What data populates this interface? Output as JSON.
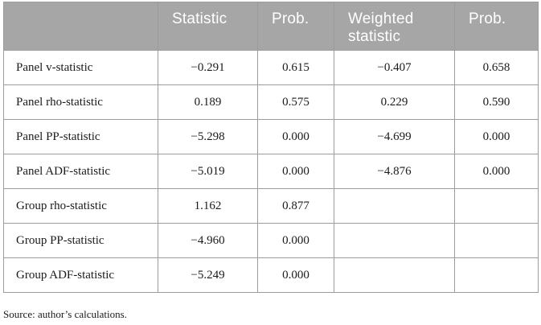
{
  "table": {
    "headers": {
      "blank": "",
      "statistic": "Statistic",
      "prob1": "Prob.",
      "weighted": "Weighted statistic",
      "prob2": "Prob."
    },
    "rows": [
      {
        "label": "Panel v-statistic",
        "statistic": "−0.291",
        "prob": "0.615",
        "weighted": "−0.407",
        "weighted_prob": "0.658"
      },
      {
        "label": "Panel rho-statistic",
        "statistic": "0.189",
        "prob": "0.575",
        "weighted": "0.229",
        "weighted_prob": "0.590"
      },
      {
        "label": "Panel PP-statistic",
        "statistic": "−5.298",
        "prob": "0.000",
        "weighted": "−4.699",
        "weighted_prob": "0.000"
      },
      {
        "label": "Panel ADF-statistic",
        "statistic": "−5.019",
        "prob": "0.000",
        "weighted": "−4.876",
        "weighted_prob": "0.000"
      },
      {
        "label": "Group rho-statistic",
        "statistic": "1.162",
        "prob": "0.877",
        "weighted": "",
        "weighted_prob": ""
      },
      {
        "label": "Group PP-statistic",
        "statistic": "−4.960",
        "prob": "0.000",
        "weighted": "",
        "weighted_prob": ""
      },
      {
        "label": "Group ADF-statistic",
        "statistic": "−5.249",
        "prob": "0.000",
        "weighted": "",
        "weighted_prob": ""
      }
    ]
  },
  "source_note": "Source: author’s calculations.",
  "colors": {
    "header_background": "#a6a6a6",
    "header_text": "#ffffff",
    "border": "#9c9c9c"
  }
}
